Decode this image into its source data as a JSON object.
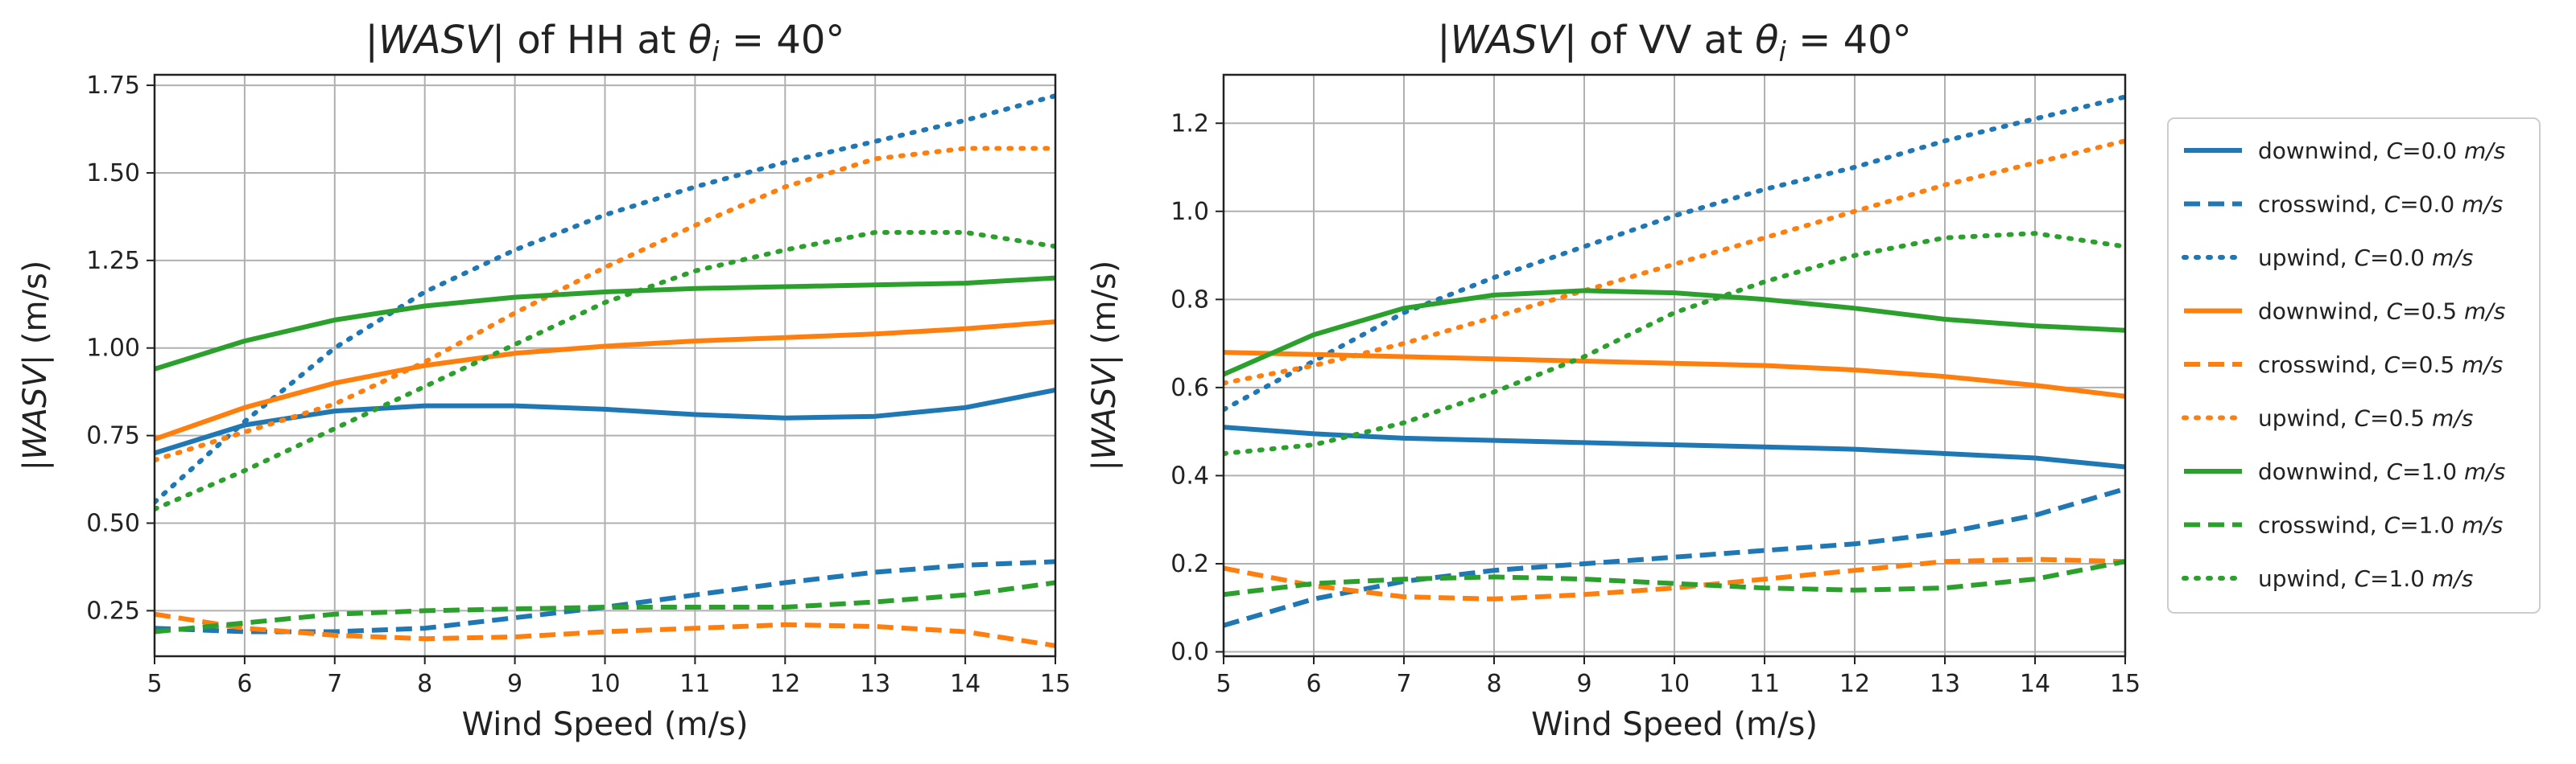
{
  "chart_data": [
    {
      "type": "line",
      "title": "|WASV| of HH at θi = 40°",
      "xlabel": "Wind Speed (m/s)",
      "ylabel": "|WASV| (m/s)",
      "xlim": [
        5,
        15
      ],
      "ylim": [
        0.12,
        1.78
      ],
      "xticks": [
        5,
        6,
        7,
        8,
        9,
        10,
        11,
        12,
        13,
        14,
        15
      ],
      "yticks": [
        0.25,
        0.5,
        0.75,
        1.0,
        1.25,
        1.5,
        1.75
      ],
      "ytick_labels": [
        "0.25",
        "0.50",
        "0.75",
        "1.00",
        "1.25",
        "1.50",
        "1.75"
      ],
      "grid": true,
      "x": [
        5,
        6,
        7,
        8,
        9,
        10,
        11,
        12,
        13,
        14,
        15
      ],
      "series": [
        {
          "name": "downwind, C=0.0 m/s",
          "color": "#1f77b4",
          "style": "solid",
          "values": [
            0.7,
            0.78,
            0.82,
            0.835,
            0.835,
            0.825,
            0.81,
            0.8,
            0.805,
            0.83,
            0.88
          ]
        },
        {
          "name": "crosswind, C=0.0 m/s",
          "color": "#1f77b4",
          "style": "dashed",
          "values": [
            0.2,
            0.19,
            0.19,
            0.2,
            0.23,
            0.26,
            0.295,
            0.33,
            0.36,
            0.38,
            0.39
          ]
        },
        {
          "name": "upwind, C=0.0 m/s",
          "color": "#1f77b4",
          "style": "dotted",
          "values": [
            0.56,
            0.79,
            1.0,
            1.16,
            1.28,
            1.38,
            1.46,
            1.53,
            1.59,
            1.65,
            1.72
          ]
        },
        {
          "name": "downwind, C=0.5 m/s",
          "color": "#ff7f0e",
          "style": "solid",
          "values": [
            0.74,
            0.83,
            0.9,
            0.95,
            0.985,
            1.005,
            1.02,
            1.03,
            1.04,
            1.055,
            1.075
          ]
        },
        {
          "name": "crosswind, C=0.5 m/s",
          "color": "#ff7f0e",
          "style": "dashed",
          "values": [
            0.24,
            0.2,
            0.18,
            0.17,
            0.175,
            0.19,
            0.2,
            0.21,
            0.205,
            0.19,
            0.15
          ]
        },
        {
          "name": "upwind, C=0.5 m/s",
          "color": "#ff7f0e",
          "style": "dotted",
          "values": [
            0.68,
            0.76,
            0.84,
            0.96,
            1.1,
            1.23,
            1.35,
            1.46,
            1.54,
            1.57,
            1.57
          ]
        },
        {
          "name": "downwind, C=1.0 m/s",
          "color": "#2ca02c",
          "style": "solid",
          "values": [
            0.94,
            1.02,
            1.08,
            1.12,
            1.145,
            1.16,
            1.17,
            1.175,
            1.18,
            1.185,
            1.2
          ]
        },
        {
          "name": "crosswind, C=1.0 m/s",
          "color": "#2ca02c",
          "style": "dashed",
          "values": [
            0.19,
            0.215,
            0.24,
            0.25,
            0.255,
            0.26,
            0.26,
            0.26,
            0.275,
            0.295,
            0.33
          ]
        },
        {
          "name": "upwind, C=1.0 m/s",
          "color": "#2ca02c",
          "style": "dotted",
          "values": [
            0.54,
            0.65,
            0.77,
            0.89,
            1.01,
            1.13,
            1.22,
            1.28,
            1.33,
            1.33,
            1.29
          ]
        }
      ]
    },
    {
      "type": "line",
      "title": "|WASV| of VV at θi = 40°",
      "xlabel": "Wind Speed (m/s)",
      "ylabel": "|WASV| (m/s)",
      "xlim": [
        5,
        15
      ],
      "ylim": [
        -0.01,
        1.31
      ],
      "xticks": [
        5,
        6,
        7,
        8,
        9,
        10,
        11,
        12,
        13,
        14,
        15
      ],
      "yticks": [
        0.0,
        0.2,
        0.4,
        0.6,
        0.8,
        1.0,
        1.2
      ],
      "ytick_labels": [
        "0.0",
        "0.2",
        "0.4",
        "0.6",
        "0.8",
        "1.0",
        "1.2"
      ],
      "grid": true,
      "x": [
        5,
        6,
        7,
        8,
        9,
        10,
        11,
        12,
        13,
        14,
        15
      ],
      "series": [
        {
          "name": "downwind, C=0.0 m/s",
          "color": "#1f77b4",
          "style": "solid",
          "values": [
            0.51,
            0.495,
            0.485,
            0.48,
            0.475,
            0.47,
            0.465,
            0.46,
            0.45,
            0.44,
            0.42
          ]
        },
        {
          "name": "crosswind, C=0.0 m/s",
          "color": "#1f77b4",
          "style": "dashed",
          "values": [
            0.06,
            0.12,
            0.16,
            0.185,
            0.2,
            0.215,
            0.23,
            0.245,
            0.27,
            0.31,
            0.37
          ]
        },
        {
          "name": "upwind, C=0.0 m/s",
          "color": "#1f77b4",
          "style": "dotted",
          "values": [
            0.55,
            0.66,
            0.77,
            0.85,
            0.92,
            0.99,
            1.05,
            1.1,
            1.16,
            1.21,
            1.26
          ]
        },
        {
          "name": "downwind, C=0.5 m/s",
          "color": "#ff7f0e",
          "style": "solid",
          "values": [
            0.68,
            0.675,
            0.67,
            0.665,
            0.66,
            0.655,
            0.65,
            0.64,
            0.625,
            0.605,
            0.58
          ]
        },
        {
          "name": "crosswind, C=0.5 m/s",
          "color": "#ff7f0e",
          "style": "dashed",
          "values": [
            0.19,
            0.15,
            0.125,
            0.12,
            0.13,
            0.145,
            0.165,
            0.185,
            0.205,
            0.21,
            0.205
          ]
        },
        {
          "name": "upwind, C=0.5 m/s",
          "color": "#ff7f0e",
          "style": "dotted",
          "values": [
            0.61,
            0.65,
            0.7,
            0.76,
            0.82,
            0.88,
            0.94,
            1.0,
            1.06,
            1.11,
            1.16
          ]
        },
        {
          "name": "downwind, C=1.0 m/s",
          "color": "#2ca02c",
          "style": "solid",
          "values": [
            0.63,
            0.72,
            0.78,
            0.81,
            0.82,
            0.815,
            0.8,
            0.78,
            0.755,
            0.74,
            0.73
          ]
        },
        {
          "name": "crosswind, C=1.0 m/s",
          "color": "#2ca02c",
          "style": "dashed",
          "values": [
            0.13,
            0.155,
            0.165,
            0.17,
            0.165,
            0.155,
            0.145,
            0.14,
            0.145,
            0.165,
            0.205
          ]
        },
        {
          "name": "upwind, C=1.0 m/s",
          "color": "#2ca02c",
          "style": "dotted",
          "values": [
            0.45,
            0.47,
            0.52,
            0.59,
            0.67,
            0.77,
            0.84,
            0.9,
            0.94,
            0.95,
            0.92
          ]
        }
      ]
    }
  ],
  "legend": {
    "position": "right",
    "items": [
      {
        "label": "downwind, C=0.0 m/s",
        "color": "#1f77b4",
        "style": "solid"
      },
      {
        "label": "crosswind, C=0.0 m/s",
        "color": "#1f77b4",
        "style": "dashed"
      },
      {
        "label": "upwind, C=0.0 m/s",
        "color": "#1f77b4",
        "style": "dotted"
      },
      {
        "label": "downwind, C=0.5 m/s",
        "color": "#ff7f0e",
        "style": "solid"
      },
      {
        "label": "crosswind, C=0.5 m/s",
        "color": "#ff7f0e",
        "style": "dashed"
      },
      {
        "label": "upwind, C=0.5 m/s",
        "color": "#ff7f0e",
        "style": "dotted"
      },
      {
        "label": "downwind, C=1.0 m/s",
        "color": "#2ca02c",
        "style": "solid"
      },
      {
        "label": "crosswind, C=1.0 m/s",
        "color": "#2ca02c",
        "style": "dashed"
      },
      {
        "label": "upwind, C=1.0 m/s",
        "color": "#2ca02c",
        "style": "dotted"
      }
    ]
  }
}
